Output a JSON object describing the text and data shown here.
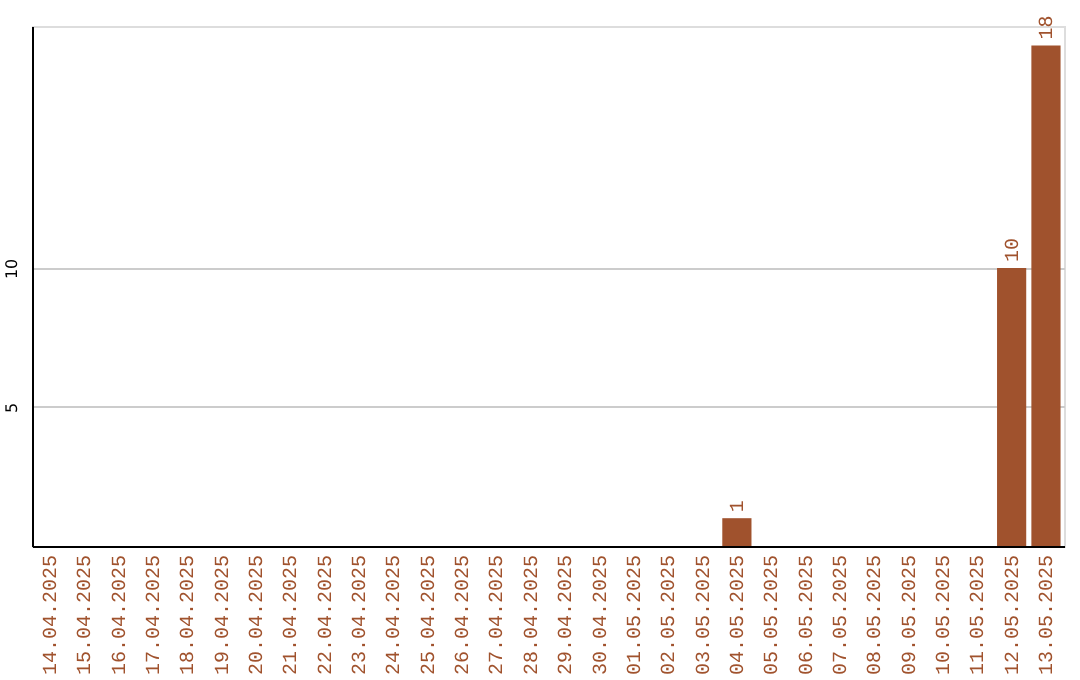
{
  "chart_data": {
    "type": "bar",
    "categories": [
      "14.04.2025",
      "15.04.2025",
      "16.04.2025",
      "17.04.2025",
      "18.04.2025",
      "19.04.2025",
      "20.04.2025",
      "21.04.2025",
      "22.04.2025",
      "23.04.2025",
      "24.04.2025",
      "25.04.2025",
      "26.04.2025",
      "27.04.2025",
      "28.04.2025",
      "29.04.2025",
      "30.04.2025",
      "01.05.2025",
      "02.05.2025",
      "03.05.2025",
      "04.05.2025",
      "05.05.2025",
      "06.05.2025",
      "07.05.2025",
      "08.05.2025",
      "09.05.2025",
      "10.05.2025",
      "11.05.2025",
      "12.05.2025",
      "13.05.2025"
    ],
    "values": [
      0,
      0,
      0,
      0,
      0,
      0,
      0,
      0,
      0,
      0,
      0,
      0,
      0,
      0,
      0,
      0,
      0,
      0,
      0,
      0,
      1,
      0,
      0,
      0,
      0,
      0,
      0,
      0,
      10,
      18
    ],
    "value_labels": [
      null,
      null,
      null,
      null,
      null,
      null,
      null,
      null,
      null,
      null,
      null,
      null,
      null,
      null,
      null,
      null,
      null,
      null,
      null,
      null,
      "1",
      null,
      null,
      null,
      null,
      null,
      null,
      null,
      "10",
      "18"
    ],
    "color": "#a0522d",
    "ylim": [
      0,
      18.7
    ],
    "yticks": [
      5,
      10
    ],
    "grid": "y"
  }
}
